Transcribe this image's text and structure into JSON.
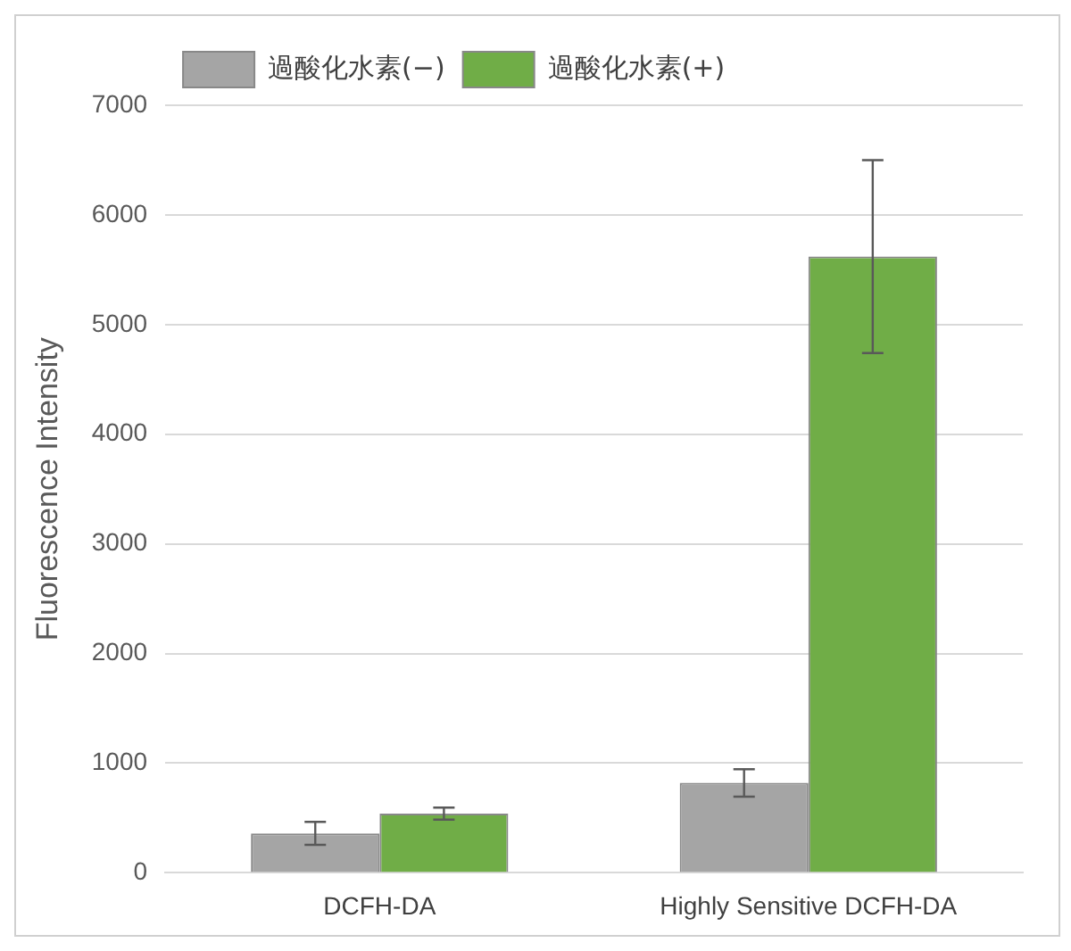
{
  "chart_data": {
    "type": "bar",
    "ylabel": "Fluorescence Intensity",
    "categories": [
      "DCFH-DA",
      "Highly Sensitive DCFH-DA"
    ],
    "series": [
      {
        "name": "過酸化水素(−)",
        "color": "#a5a5a5",
        "values": [
          360,
          820
        ],
        "errors": [
          105,
          125
        ]
      },
      {
        "name": "過酸化水素(+)",
        "color": "#70ad47",
        "values": [
          540,
          5620
        ],
        "errors": [
          55,
          880
        ]
      }
    ],
    "ylim": [
      0,
      7000
    ],
    "yticks": [
      0,
      1000,
      2000,
      3000,
      4000,
      5000,
      6000,
      7000
    ],
    "grid": "y",
    "legend": "top left"
  }
}
